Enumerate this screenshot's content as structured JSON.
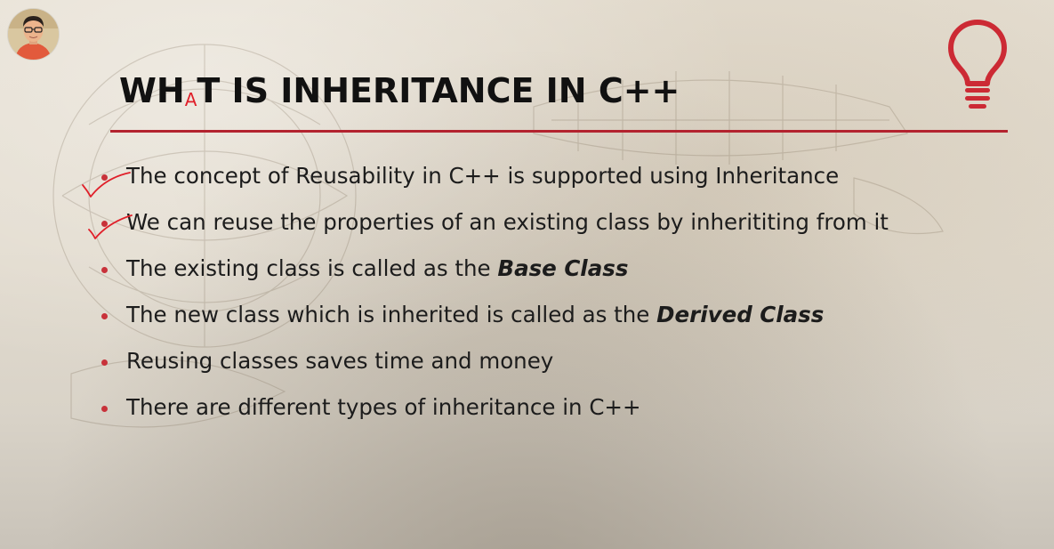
{
  "slide": {
    "title_parts": {
      "before": "WH",
      "inserted": "A",
      "after": "T IS INHERITANCE IN C++"
    },
    "bullets": [
      {
        "text": "The concept of Reusability in C++ is supported using Inheritance",
        "emphasis": ""
      },
      {
        "text": "We can reuse the properties of an existing class by inherititing from it",
        "emphasis": ""
      },
      {
        "text": "The existing class is called as the ",
        "emphasis": "Base Class"
      },
      {
        "text": "The new class which is inherited is called as the ",
        "emphasis": "Derived Class"
      },
      {
        "text": "Reusing classes saves time and money",
        "emphasis": ""
      },
      {
        "text": "There are different types of inheritance in C++",
        "emphasis": ""
      }
    ]
  },
  "colors": {
    "accent": "#b3232f",
    "bullet": "#c8323a",
    "ink": "#e0202a",
    "title": "#111111",
    "body_text": "#1c1c1c"
  },
  "icons": {
    "top_right": "lightbulb-icon",
    "top_left": "presenter-avatar"
  }
}
